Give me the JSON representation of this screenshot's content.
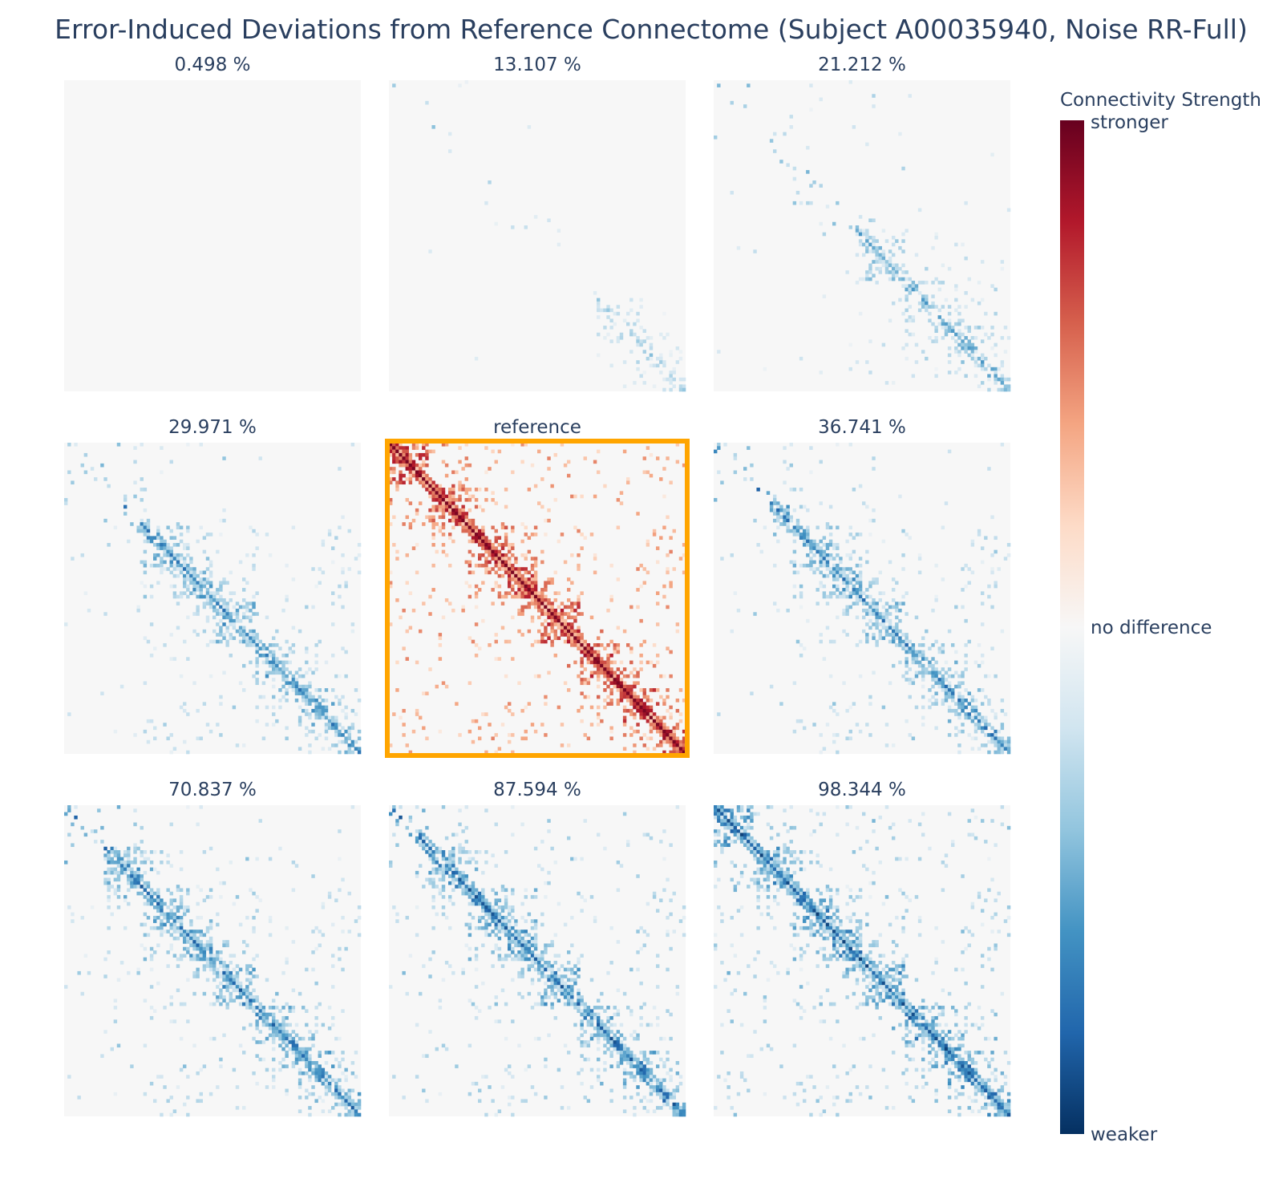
{
  "chart_data": {
    "type": "heatmap",
    "title": "Error-Induced Deviations from Reference Connectome (Subject A00035940, Noise RR-Full)",
    "matrix_size": 90,
    "panels": [
      {
        "label": "0.498 %",
        "kind": "difference",
        "intensity": 0.0,
        "highlighted": false
      },
      {
        "label": "13.107 %",
        "kind": "difference",
        "intensity": 0.18,
        "highlighted": false
      },
      {
        "label": "21.212 %",
        "kind": "difference",
        "intensity": 0.45,
        "highlighted": false
      },
      {
        "label": "29.971 %",
        "kind": "difference",
        "intensity": 0.72,
        "highlighted": false
      },
      {
        "label": "reference",
        "kind": "reference",
        "intensity": 1.0,
        "highlighted": true
      },
      {
        "label": "36.741 %",
        "kind": "difference",
        "intensity": 0.78,
        "highlighted": false
      },
      {
        "label": "70.837 %",
        "kind": "difference",
        "intensity": 0.85,
        "highlighted": false
      },
      {
        "label": "87.594 %",
        "kind": "difference",
        "intensity": 0.9,
        "highlighted": false
      },
      {
        "label": "98.344 %",
        "kind": "difference",
        "intensity": 1.0,
        "highlighted": false
      }
    ],
    "colorbar": {
      "title": "Connectivity Strength",
      "tick_top": "stronger",
      "tick_middle": "no difference",
      "tick_bottom": "weaker",
      "colorscale": [
        "#67001f",
        "#b2182b",
        "#d6604d",
        "#f4a582",
        "#fddbc7",
        "#f7f7f7",
        "#d1e5f0",
        "#92c5de",
        "#4393c3",
        "#2166ac",
        "#053061"
      ]
    },
    "highlight_color": "#ffa500",
    "background_color": "#f7f7f7"
  }
}
